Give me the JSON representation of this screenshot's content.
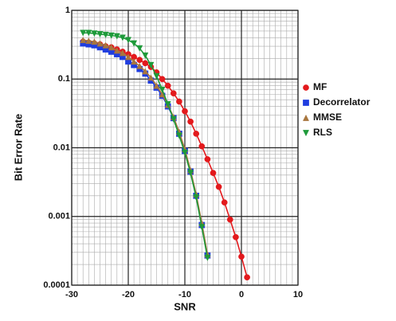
{
  "chart_data": {
    "type": "line",
    "x_label": "SNR",
    "y_label": "Bit Error Rate",
    "x": [
      -28,
      -27,
      -26,
      -25,
      -24,
      -23,
      -22,
      -21,
      -20,
      -19,
      -18,
      -17,
      -16,
      -15,
      -14,
      -13,
      -12,
      -11,
      -10,
      -9,
      -8,
      -7,
      -6,
      -5,
      -4,
      -3,
      -2,
      -1,
      0,
      1
    ],
    "series": [
      {
        "name": "MF",
        "color": "#e3191c",
        "marker": "circle",
        "values": [
          0.35,
          0.34,
          0.33,
          0.32,
          0.3,
          0.29,
          0.27,
          0.25,
          0.23,
          0.21,
          0.19,
          0.17,
          0.15,
          0.125,
          0.1,
          0.08,
          0.062,
          0.047,
          0.034,
          0.024,
          0.016,
          0.0105,
          0.0068,
          0.0043,
          0.0027,
          0.0016,
          0.0009,
          0.0005,
          0.00026,
          0.00013
        ]
      },
      {
        "name": "Decorrelator",
        "color": "#1f3de0",
        "marker": "square",
        "values": [
          0.33,
          0.32,
          0.31,
          0.29,
          0.27,
          0.25,
          0.23,
          0.21,
          0.18,
          0.16,
          0.14,
          0.12,
          0.095,
          0.075,
          0.057,
          0.04,
          0.027,
          0.016,
          0.009,
          0.0045,
          0.002,
          0.00075,
          0.00027,
          null,
          null,
          null,
          null,
          null,
          null,
          null
        ]
      },
      {
        "name": "MMSE",
        "color": "#a8763e",
        "marker": "triangle-up",
        "values": [
          0.37,
          0.36,
          0.35,
          0.33,
          0.31,
          0.29,
          0.26,
          0.24,
          0.21,
          0.18,
          0.155,
          0.13,
          0.105,
          0.08,
          0.06,
          0.042,
          0.028,
          0.017,
          0.0095,
          0.0047,
          0.0021,
          0.0008,
          0.00028,
          null,
          null,
          null,
          null,
          null,
          null,
          null
        ]
      },
      {
        "name": "RLS",
        "color": "#1e9a3a",
        "marker": "triangle-down",
        "values": [
          0.47,
          0.47,
          0.46,
          0.45,
          0.44,
          0.43,
          0.42,
          0.4,
          0.37,
          0.33,
          0.28,
          0.22,
          0.16,
          0.11,
          0.07,
          0.043,
          0.026,
          0.015,
          0.0085,
          0.0043,
          0.0019,
          0.0007,
          0.00025,
          null,
          null,
          null,
          null,
          null,
          null,
          null
        ]
      }
    ],
    "xlim": [
      -30,
      10
    ],
    "xticks": [
      -30,
      -20,
      -10,
      0,
      10
    ],
    "ylim": [
      0.0001,
      1
    ],
    "yticks": [
      0.0001,
      0.001,
      0.01,
      0.1,
      1
    ],
    "y_log": true,
    "grid": true,
    "minor_grid": true,
    "legend": "right"
  }
}
